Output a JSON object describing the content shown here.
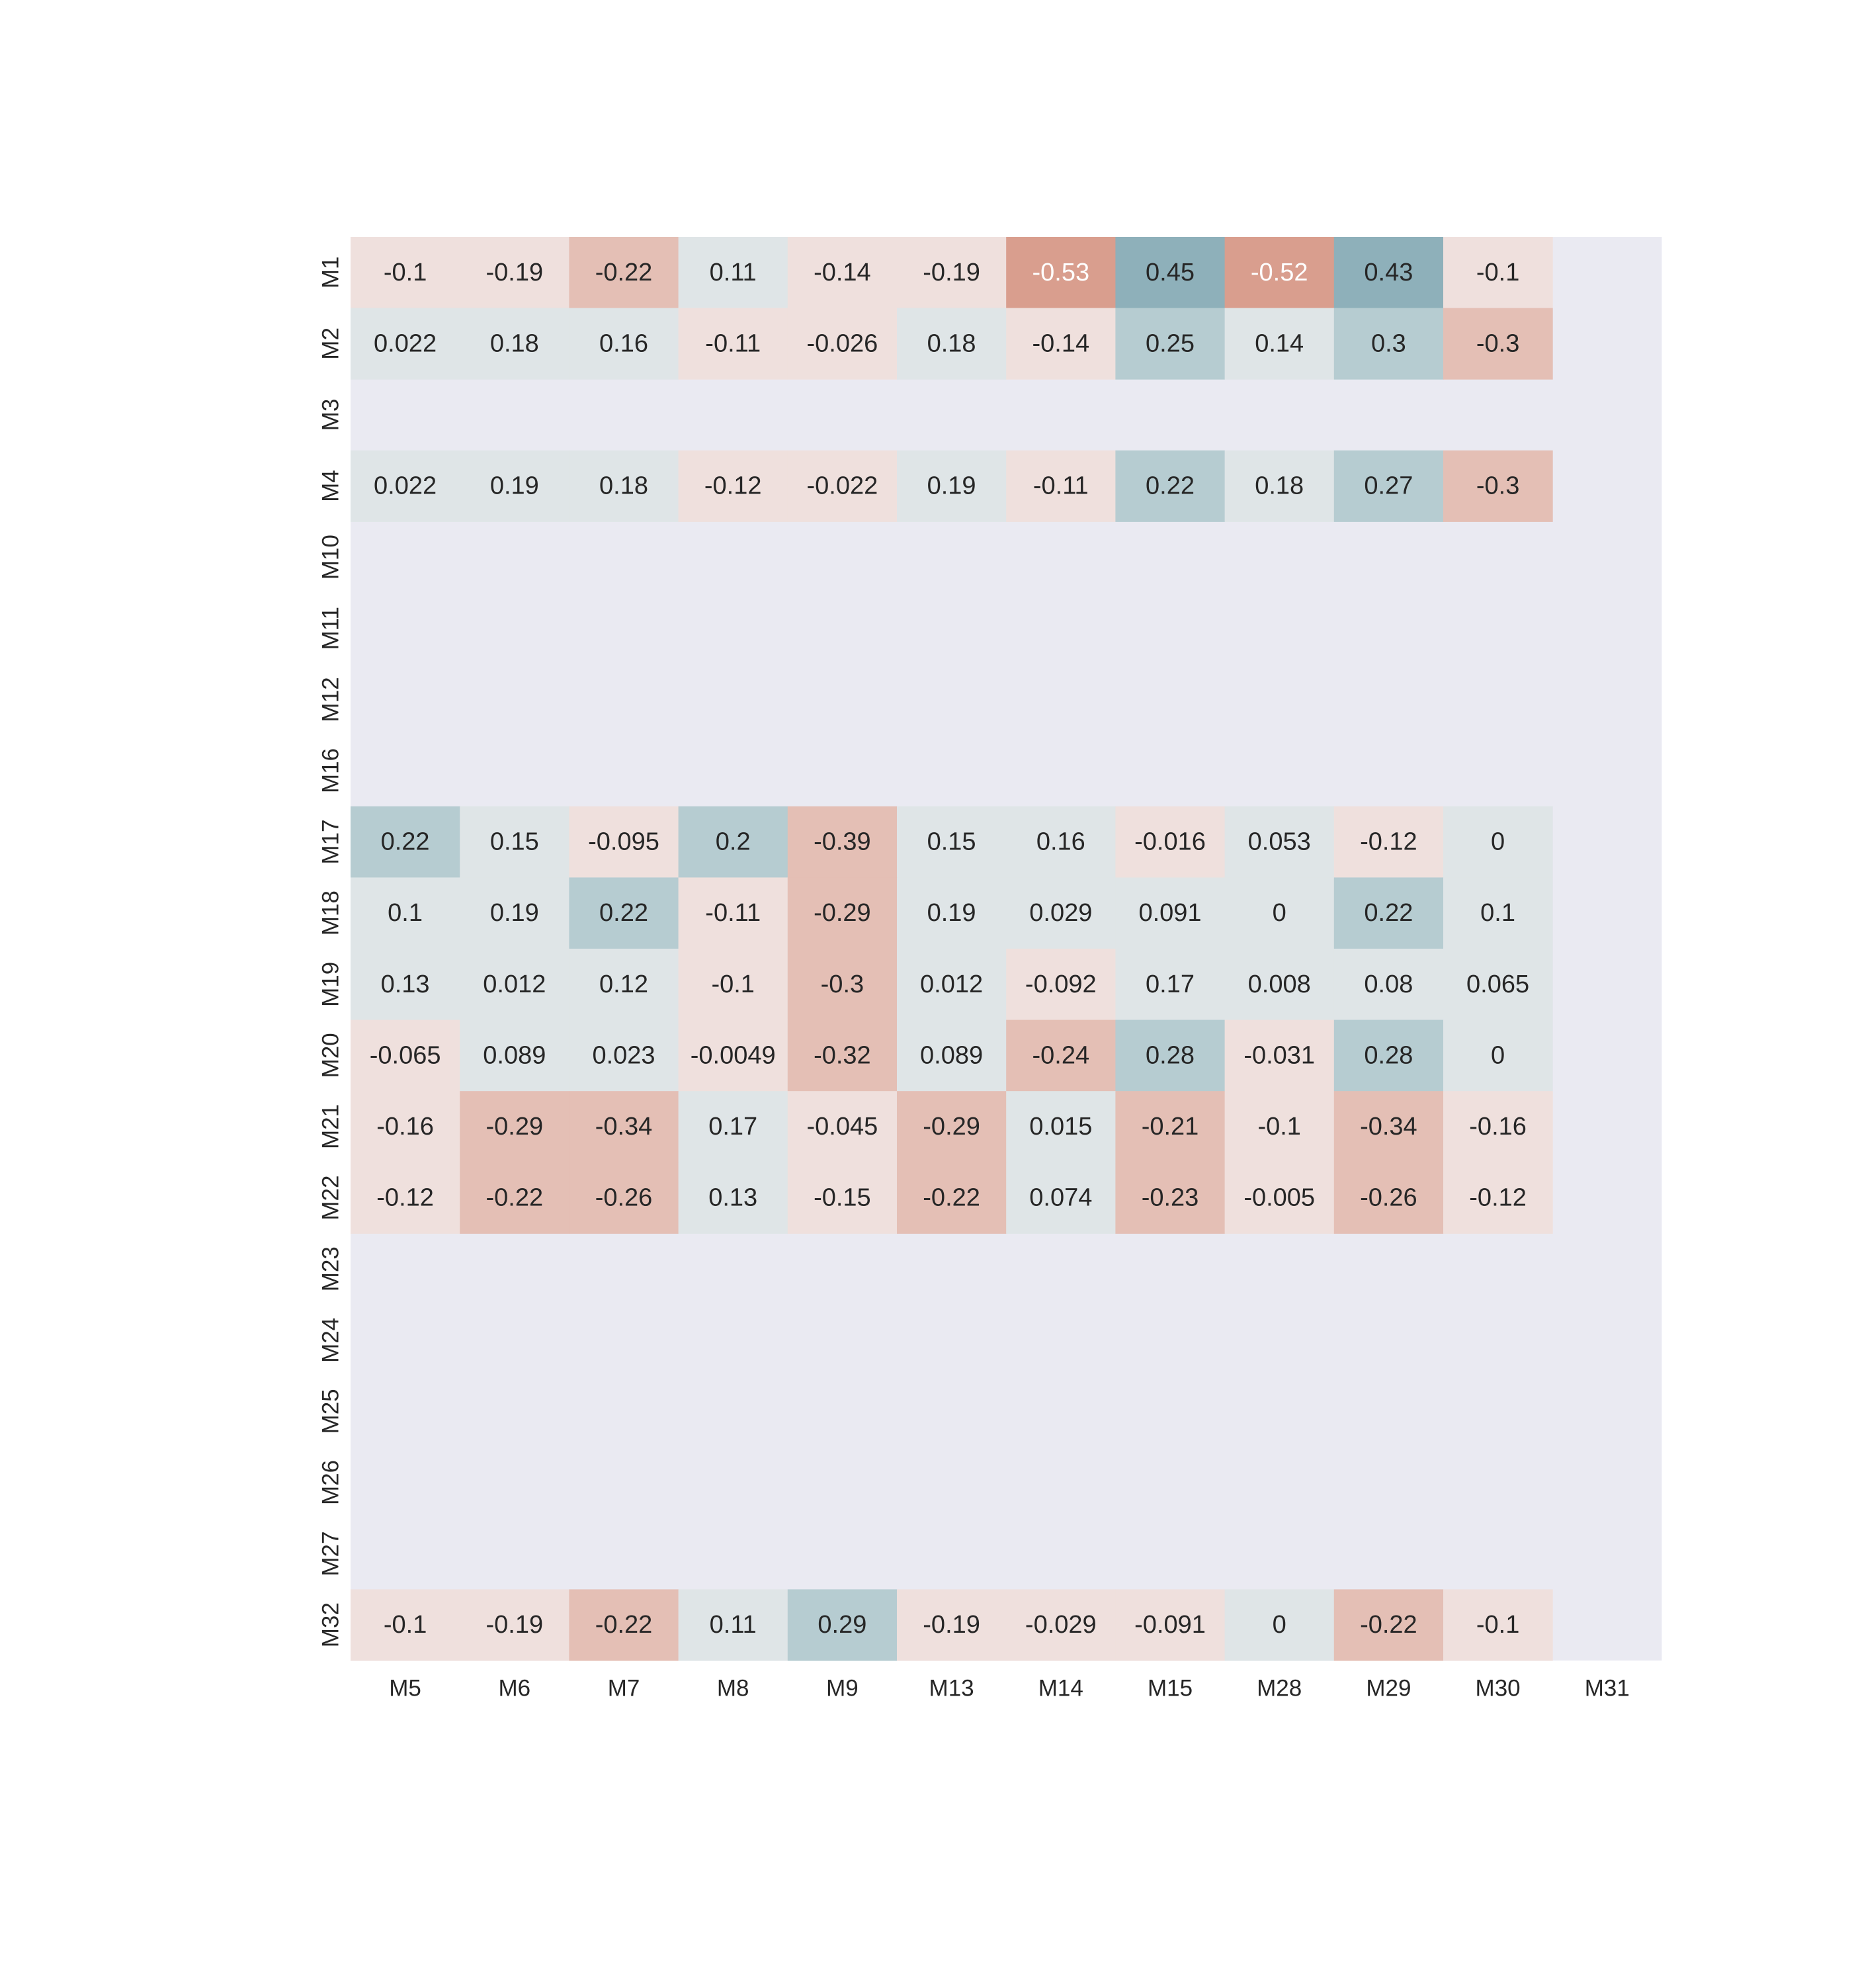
{
  "chart_data": {
    "type": "heatmap",
    "title": "",
    "xlabel": "",
    "ylabel": "",
    "x_labels": [
      "M5",
      "M6",
      "M7",
      "M8",
      "M9",
      "M13",
      "M14",
      "M15",
      "M28",
      "M29",
      "M30",
      "M31"
    ],
    "y_labels": [
      "M1",
      "M2",
      "M3",
      "M4",
      "M10",
      "M11",
      "M12",
      "M16",
      "M17",
      "M18",
      "M19",
      "M20",
      "M21",
      "M22",
      "M23",
      "M24",
      "M25",
      "M26",
      "M27",
      "M32"
    ],
    "values": [
      [
        -0.1,
        -0.19,
        -0.22,
        0.11,
        -0.14,
        -0.19,
        -0.53,
        0.45,
        -0.52,
        0.43,
        -0.1,
        null
      ],
      [
        0.022,
        0.18,
        0.16,
        -0.11,
        -0.026,
        0.18,
        -0.14,
        0.25,
        0.14,
        0.3,
        -0.3,
        null
      ],
      [
        null,
        null,
        null,
        null,
        null,
        null,
        null,
        null,
        null,
        null,
        null,
        null
      ],
      [
        0.022,
        0.19,
        0.18,
        -0.12,
        -0.022,
        0.19,
        -0.11,
        0.22,
        0.18,
        0.27,
        -0.3,
        null
      ],
      [
        null,
        null,
        null,
        null,
        null,
        null,
        null,
        null,
        null,
        null,
        null,
        null
      ],
      [
        null,
        null,
        null,
        null,
        null,
        null,
        null,
        null,
        null,
        null,
        null,
        null
      ],
      [
        null,
        null,
        null,
        null,
        null,
        null,
        null,
        null,
        null,
        null,
        null,
        null
      ],
      [
        null,
        null,
        null,
        null,
        null,
        null,
        null,
        null,
        null,
        null,
        null,
        null
      ],
      [
        0.22,
        0.15,
        -0.095,
        0.2,
        -0.39,
        0.15,
        0.16,
        -0.016,
        0.053,
        -0.12,
        0,
        null
      ],
      [
        0.1,
        0.19,
        0.22,
        -0.11,
        -0.29,
        0.19,
        0.029,
        0.091,
        0,
        0.22,
        0.1,
        null
      ],
      [
        0.13,
        0.012,
        0.12,
        -0.1,
        -0.3,
        0.012,
        -0.092,
        0.17,
        0.008,
        0.08,
        0.065,
        null
      ],
      [
        -0.065,
        0.089,
        0.023,
        -0.0049,
        -0.32,
        0.089,
        -0.24,
        0.28,
        -0.031,
        0.28,
        0,
        null
      ],
      [
        -0.16,
        -0.29,
        -0.34,
        0.17,
        -0.045,
        -0.29,
        0.015,
        -0.21,
        -0.1,
        -0.34,
        -0.16,
        null
      ],
      [
        -0.12,
        -0.22,
        -0.26,
        0.13,
        -0.15,
        -0.22,
        0.074,
        -0.23,
        -0.005,
        -0.26,
        -0.12,
        null
      ],
      [
        null,
        null,
        null,
        null,
        null,
        null,
        null,
        null,
        null,
        null,
        null,
        null
      ],
      [
        null,
        null,
        null,
        null,
        null,
        null,
        null,
        null,
        null,
        null,
        null,
        null
      ],
      [
        null,
        null,
        null,
        null,
        null,
        null,
        null,
        null,
        null,
        null,
        null,
        null
      ],
      [
        null,
        null,
        null,
        null,
        null,
        null,
        null,
        null,
        null,
        null,
        null,
        null
      ],
      [
        null,
        null,
        null,
        null,
        null,
        null,
        null,
        null,
        null,
        null,
        null,
        null
      ],
      [
        -0.1,
        -0.19,
        -0.22,
        0.11,
        0.29,
        -0.19,
        -0.029,
        -0.091,
        0,
        -0.22,
        -0.1,
        null
      ]
    ],
    "colors": {
      "background": "#eaeaf2",
      "positive_colors": [
        "#dfe5e7",
        "#b6ccd1",
        "#8eb0ba"
      ],
      "negative_colors": [
        "#efe0dd",
        "#e4bfb5",
        "#d99e8e"
      ],
      "text_dark": "#262626",
      "text_light": "#ffffff"
    },
    "grid": false,
    "legend": "none"
  }
}
